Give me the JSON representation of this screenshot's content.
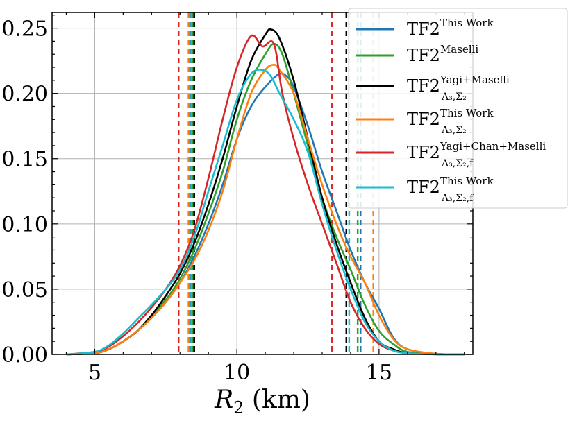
{
  "chart_data": {
    "type": "line",
    "xlabel_var": "R",
    "xlabel_sub": "2",
    "xlabel_unit": " (km)",
    "ylabel": "",
    "xlim": [
      3.5,
      18.3
    ],
    "ylim": [
      0.0,
      0.262
    ],
    "xticks": [
      5,
      10,
      15
    ],
    "xtick_labels": [
      "5",
      "10",
      "15"
    ],
    "yticks": [
      0.0,
      0.05,
      0.1,
      0.15,
      0.2,
      0.25
    ],
    "ytick_labels": [
      "0.00",
      "0.05",
      "0.10",
      "0.15",
      "0.20",
      "0.25"
    ],
    "grid": true,
    "legend_position": "upper-right",
    "series": [
      {
        "name_base": "TF2",
        "name_sup": "This Work",
        "name_sub": "",
        "color": "#1f77b4",
        "x": [
          4.0,
          5.0,
          5.5,
          6.0,
          6.5,
          7.0,
          7.5,
          8.0,
          8.5,
          9.0,
          9.5,
          10.0,
          10.5,
          11.0,
          11.5,
          11.8,
          12.0,
          12.5,
          13.0,
          13.5,
          14.0,
          14.5,
          15.0,
          15.5,
          16.0,
          17.0,
          18.0
        ],
        "y": [
          0.0,
          0.001,
          0.004,
          0.01,
          0.018,
          0.028,
          0.04,
          0.055,
          0.075,
          0.1,
          0.13,
          0.165,
          0.19,
          0.205,
          0.215,
          0.212,
          0.205,
          0.175,
          0.14,
          0.11,
          0.08,
          0.055,
          0.035,
          0.013,
          0.004,
          0.0005,
          0.0
        ],
        "ci": [
          8.35,
          14.35
        ]
      },
      {
        "name_base": "TF2",
        "name_sup": "Maselli",
        "name_sub": "",
        "color": "#2ca02c",
        "x": [
          4.0,
          5.0,
          5.5,
          6.0,
          6.5,
          7.0,
          7.5,
          8.0,
          8.5,
          9.0,
          9.5,
          10.0,
          10.5,
          11.0,
          11.3,
          11.6,
          12.0,
          12.5,
          13.0,
          13.5,
          14.0,
          14.5,
          15.0,
          15.5,
          16.0,
          17.0,
          18.0
        ],
        "y": [
          0.0,
          0.001,
          0.004,
          0.01,
          0.018,
          0.03,
          0.042,
          0.058,
          0.08,
          0.108,
          0.14,
          0.18,
          0.21,
          0.23,
          0.238,
          0.23,
          0.2,
          0.16,
          0.12,
          0.09,
          0.065,
          0.038,
          0.018,
          0.008,
          0.002,
          0.0003,
          0.0
        ],
        "ci": [
          8.45,
          14.25
        ]
      },
      {
        "name_base": "TF2",
        "name_sup": "Yagi+Maselli",
        "name_sub": "Λ₃,Σ₂",
        "color": "#000000",
        "x": [
          4.0,
          5.0,
          5.5,
          6.0,
          6.5,
          7.0,
          7.5,
          8.0,
          8.5,
          9.0,
          9.5,
          10.0,
          10.5,
          11.0,
          11.2,
          11.5,
          12.0,
          12.5,
          13.0,
          13.5,
          14.0,
          14.5,
          15.0,
          15.5,
          16.0,
          17.0,
          18.0
        ],
        "y": [
          0.0,
          0.001,
          0.004,
          0.01,
          0.018,
          0.03,
          0.045,
          0.062,
          0.085,
          0.115,
          0.15,
          0.19,
          0.225,
          0.245,
          0.249,
          0.242,
          0.21,
          0.165,
          0.12,
          0.085,
          0.055,
          0.028,
          0.01,
          0.004,
          0.001,
          0.0001,
          0.0
        ],
        "ci": [
          8.5,
          13.85
        ]
      },
      {
        "name_base": "TF2",
        "name_sup": "This Work",
        "name_sub": "Λ₃,Σ₂",
        "color": "#ff7f0e",
        "x": [
          4.0,
          5.0,
          5.5,
          6.0,
          6.5,
          7.0,
          7.5,
          8.0,
          8.5,
          9.0,
          9.5,
          10.0,
          10.5,
          11.0,
          11.3,
          11.5,
          12.0,
          12.5,
          13.0,
          13.5,
          14.0,
          14.5,
          15.0,
          15.5,
          16.0,
          17.0,
          18.0
        ],
        "y": [
          0.0,
          0.001,
          0.004,
          0.01,
          0.018,
          0.028,
          0.04,
          0.055,
          0.072,
          0.095,
          0.125,
          0.165,
          0.2,
          0.218,
          0.222,
          0.218,
          0.2,
          0.165,
          0.13,
          0.1,
          0.075,
          0.055,
          0.03,
          0.012,
          0.004,
          0.0005,
          0.0
        ],
        "ci": [
          8.3,
          14.8
        ]
      },
      {
        "name_base": "TF2",
        "name_sup": "Yagi+Chan+Maselli",
        "name_sub": "Λ₃,Σ₂,f",
        "color": "#d62728",
        "x": [
          4.0,
          5.0,
          5.5,
          6.0,
          6.5,
          7.0,
          7.5,
          8.0,
          8.5,
          9.0,
          9.5,
          10.0,
          10.5,
          10.9,
          11.3,
          11.6,
          12.0,
          12.5,
          13.0,
          13.5,
          14.0,
          14.5,
          15.0,
          15.5,
          16.0,
          17.0,
          18.0
        ],
        "y": [
          0.0,
          0.002,
          0.006,
          0.014,
          0.024,
          0.036,
          0.05,
          0.068,
          0.095,
          0.135,
          0.18,
          0.22,
          0.244,
          0.236,
          0.238,
          0.2,
          0.165,
          0.13,
          0.1,
          0.07,
          0.04,
          0.02,
          0.008,
          0.003,
          0.001,
          0.0001,
          0.0
        ],
        "ci": [
          7.95,
          13.35
        ]
      },
      {
        "name_base": "TF2",
        "name_sup": "This Work",
        "name_sub": "Λ₃,Σ₂,f",
        "color": "#17becf",
        "x": [
          4.0,
          5.0,
          5.5,
          6.0,
          6.5,
          7.0,
          7.5,
          8.0,
          8.5,
          9.0,
          9.5,
          10.0,
          10.5,
          10.9,
          11.2,
          11.5,
          12.0,
          12.5,
          13.0,
          13.5,
          14.0,
          14.5,
          15.0,
          15.5,
          16.0,
          17.0,
          18.0
        ],
        "y": [
          0.0,
          0.002,
          0.007,
          0.016,
          0.027,
          0.038,
          0.05,
          0.065,
          0.09,
          0.125,
          0.16,
          0.195,
          0.215,
          0.218,
          0.213,
          0.2,
          0.18,
          0.155,
          0.115,
          0.08,
          0.05,
          0.025,
          0.01,
          0.003,
          0.001,
          0.0001,
          0.0
        ],
        "ci": [
          8.4,
          13.95
        ]
      }
    ]
  }
}
